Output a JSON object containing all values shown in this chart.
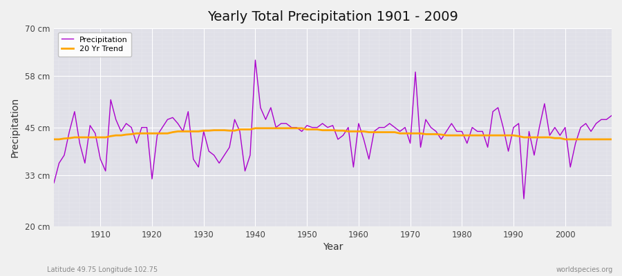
{
  "title": "Yearly Total Precipitation 1901 - 2009",
  "xlabel": "Year",
  "ylabel": "Precipitation",
  "subtitle": "Latitude 49.75 Longitude 102.75",
  "watermark": "worldspecies.org",
  "ylim": [
    20,
    70
  ],
  "xlim": [
    1901,
    2009
  ],
  "yticks": [
    20,
    33,
    45,
    58,
    70
  ],
  "ytick_labels": [
    "20 cm",
    "33 cm",
    "45 cm",
    "58 cm",
    "70 cm"
  ],
  "xticks": [
    1910,
    1920,
    1930,
    1940,
    1950,
    1960,
    1970,
    1980,
    1990,
    2000
  ],
  "precip_color": "#AA00CC",
  "trend_color": "#FFA500",
  "bg_color": "#E0E0E8",
  "fig_bg_color": "#F0F0F0",
  "years": [
    1901,
    1902,
    1903,
    1904,
    1905,
    1906,
    1907,
    1908,
    1909,
    1910,
    1911,
    1912,
    1913,
    1914,
    1915,
    1916,
    1917,
    1918,
    1919,
    1920,
    1921,
    1922,
    1923,
    1924,
    1925,
    1926,
    1927,
    1928,
    1929,
    1930,
    1931,
    1932,
    1933,
    1934,
    1935,
    1936,
    1937,
    1938,
    1939,
    1940,
    1941,
    1942,
    1943,
    1944,
    1945,
    1946,
    1947,
    1948,
    1949,
    1950,
    1951,
    1952,
    1953,
    1954,
    1955,
    1956,
    1957,
    1958,
    1959,
    1960,
    1961,
    1962,
    1963,
    1964,
    1965,
    1966,
    1967,
    1968,
    1969,
    1970,
    1971,
    1972,
    1973,
    1974,
    1975,
    1976,
    1977,
    1978,
    1979,
    1980,
    1981,
    1982,
    1983,
    1984,
    1985,
    1986,
    1987,
    1988,
    1989,
    1990,
    1991,
    1992,
    1993,
    1994,
    1995,
    1996,
    1997,
    1998,
    1999,
    2000,
    2001,
    2002,
    2003,
    2004,
    2005,
    2006,
    2007,
    2008,
    2009
  ],
  "precip": [
    31.0,
    36.0,
    38.0,
    44.0,
    49.0,
    41.0,
    36.0,
    45.5,
    43.5,
    37.0,
    34.0,
    52.0,
    47.0,
    44.0,
    46.0,
    45.0,
    41.0,
    45.0,
    45.0,
    32.0,
    43.0,
    45.0,
    47.0,
    47.5,
    46.0,
    44.0,
    49.0,
    37.0,
    35.0,
    44.0,
    39.0,
    38.0,
    36.0,
    38.0,
    40.0,
    47.0,
    44.0,
    34.0,
    38.0,
    62.0,
    50.0,
    47.0,
    50.0,
    45.0,
    46.0,
    46.0,
    45.0,
    45.0,
    44.0,
    45.5,
    45.0,
    45.0,
    46.0,
    45.0,
    45.5,
    42.0,
    43.0,
    45.0,
    35.0,
    46.0,
    42.0,
    37.0,
    44.0,
    45.0,
    45.0,
    46.0,
    45.0,
    44.0,
    45.0,
    41.0,
    59.0,
    40.0,
    47.0,
    45.0,
    44.0,
    42.0,
    44.0,
    46.0,
    44.0,
    44.0,
    41.0,
    45.0,
    44.0,
    44.0,
    40.0,
    49.0,
    50.0,
    45.0,
    39.0,
    45.0,
    46.0,
    27.0,
    44.0,
    38.0,
    45.0,
    51.0,
    43.0,
    45.0,
    43.0,
    45.0,
    35.0,
    41.0,
    45.0,
    46.0,
    44.0,
    46.0,
    47.0,
    47.0,
    48.0
  ],
  "trend": [
    42.0,
    42.0,
    42.2,
    42.3,
    42.5,
    42.5,
    42.5,
    42.5,
    42.5,
    42.5,
    42.5,
    42.8,
    43.0,
    43.0,
    43.2,
    43.3,
    43.5,
    43.5,
    43.5,
    43.5,
    43.5,
    43.5,
    43.5,
    43.8,
    44.0,
    44.0,
    44.0,
    44.0,
    44.0,
    44.2,
    44.2,
    44.3,
    44.3,
    44.3,
    44.2,
    44.2,
    44.5,
    44.5,
    44.5,
    44.8,
    44.8,
    44.8,
    44.8,
    44.8,
    44.8,
    44.8,
    44.8,
    44.8,
    44.8,
    44.5,
    44.5,
    44.5,
    44.3,
    44.3,
    44.3,
    44.2,
    44.2,
    44.0,
    44.0,
    44.0,
    44.0,
    43.8,
    43.8,
    43.8,
    43.8,
    43.8,
    43.8,
    43.5,
    43.5,
    43.5,
    43.5,
    43.5,
    43.3,
    43.3,
    43.3,
    43.2,
    43.0,
    43.0,
    43.0,
    43.0,
    43.0,
    43.0,
    43.0,
    43.0,
    43.0,
    43.0,
    43.0,
    43.0,
    43.0,
    43.0,
    42.8,
    42.5,
    42.5,
    42.5,
    42.5,
    42.5,
    42.5,
    42.3,
    42.3,
    42.0,
    42.0,
    42.0,
    42.0,
    42.0,
    42.0,
    42.0,
    42.0,
    42.0,
    42.0
  ]
}
